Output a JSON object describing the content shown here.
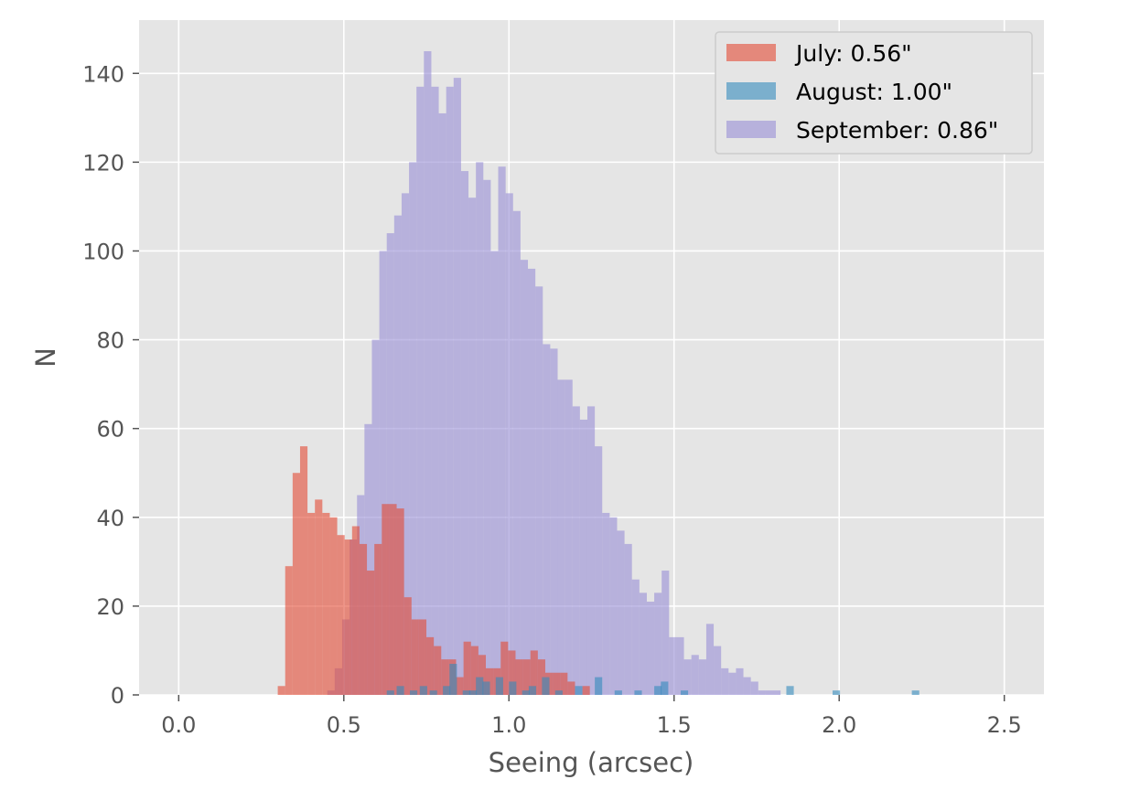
{
  "chart_data": {
    "type": "histogram",
    "xlabel": "Seeing (arcsec)",
    "ylabel": "N",
    "xlim": [
      -0.12,
      2.62
    ],
    "ylim": [
      0,
      152
    ],
    "x_ticks": [
      0.0,
      0.5,
      1.0,
      1.5,
      2.0,
      2.5
    ],
    "x_tick_labels": [
      "0.0",
      "0.5",
      "1.0",
      "1.5",
      "2.0",
      "2.5"
    ],
    "y_ticks": [
      0,
      20,
      40,
      60,
      80,
      100,
      120,
      140
    ],
    "y_tick_labels": [
      "0",
      "20",
      "40",
      "60",
      "80",
      "100",
      "120",
      "140"
    ],
    "grid": true,
    "background": "#e5e5e5",
    "legend_position": "top-right",
    "legend": [
      {
        "label": "July: 0.56\"",
        "color": "#e24a33",
        "alpha": 0.6
      },
      {
        "label": "August: 1.00\"",
        "color": "#348abd",
        "alpha": 0.6
      },
      {
        "label": "September: 0.86\"",
        "color": "#988ed5",
        "alpha": 0.6
      }
    ],
    "series": [
      {
        "name": "September: 0.86\"",
        "color": "#988ed5",
        "bin_start": 0.45,
        "bin_width": 0.0225,
        "counts": [
          1,
          6,
          17,
          35,
          45,
          61,
          80,
          100,
          104,
          108,
          113,
          120,
          137,
          145,
          137,
          131,
          137,
          139,
          118,
          112,
          120,
          116,
          100,
          119,
          113,
          109,
          98,
          96,
          92,
          79,
          78,
          71,
          71,
          65,
          62,
          65,
          56,
          41,
          40,
          37,
          34,
          26,
          23,
          21,
          23,
          28,
          13,
          13,
          8,
          9,
          8,
          16,
          11,
          6,
          5,
          6,
          4,
          3,
          1,
          1,
          1
        ]
      },
      {
        "name": "July: 0.56\"",
        "color": "#e24a33",
        "bin_start": 0.3,
        "bin_width": 0.0225,
        "counts": [
          2,
          29,
          50,
          56,
          41,
          44,
          41,
          40,
          36,
          35,
          38,
          34,
          28,
          34,
          43,
          43,
          42,
          22,
          17,
          17,
          13,
          11,
          8,
          8,
          4,
          12,
          11,
          9,
          6,
          6,
          12,
          10,
          8,
          8,
          10,
          8,
          5,
          5,
          5,
          3,
          0,
          2
        ]
      },
      {
        "name": "August: 1.00\"",
        "color": "#348abd",
        "bins": [
          [
            0.63,
            1
          ],
          [
            0.66,
            2
          ],
          [
            0.7,
            1
          ],
          [
            0.73,
            2
          ],
          [
            0.76,
            1
          ],
          [
            0.8,
            2
          ],
          [
            0.82,
            7
          ],
          [
            0.86,
            1
          ],
          [
            0.88,
            1
          ],
          [
            0.9,
            4
          ],
          [
            0.92,
            3
          ],
          [
            0.96,
            4
          ],
          [
            1.0,
            3
          ],
          [
            1.04,
            1
          ],
          [
            1.06,
            2
          ],
          [
            1.1,
            4
          ],
          [
            1.14,
            1
          ],
          [
            1.2,
            2
          ],
          [
            1.26,
            4
          ],
          [
            1.32,
            1
          ],
          [
            1.38,
            1
          ],
          [
            1.44,
            2
          ],
          [
            1.46,
            3
          ],
          [
            1.52,
            1
          ],
          [
            1.84,
            2
          ],
          [
            1.98,
            1
          ],
          [
            2.22,
            1
          ]
        ]
      }
    ]
  }
}
